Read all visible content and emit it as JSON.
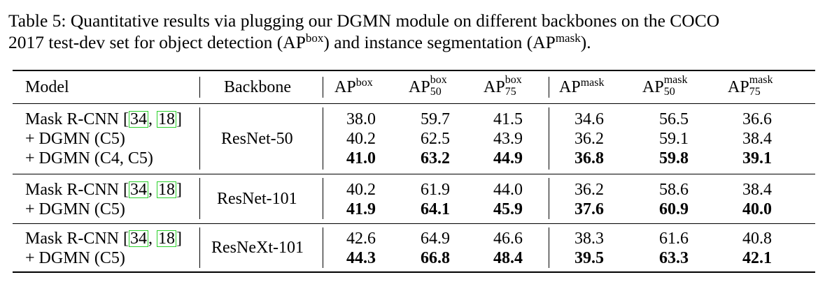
{
  "caption": {
    "line1": "Table 5: Quantitative results via plugging our DGMN module on different backbones on the COCO",
    "line2_start": "2017 test-dev set for object detection (AP",
    "line2_sup1": "box",
    "line2_mid": ") and instance segmentation (AP",
    "line2_sup2": "mask",
    "line2_end": ")."
  },
  "table": {
    "headers": {
      "model": "Model",
      "backbone": "Backbone",
      "metrics": [
        {
          "base": "AP",
          "sup": "box",
          "sub": ""
        },
        {
          "base": "AP",
          "sup": "box",
          "sub": "50"
        },
        {
          "base": "AP",
          "sup": "box",
          "sub": "75"
        },
        {
          "base": "AP",
          "sup": "mask",
          "sub": ""
        },
        {
          "base": "AP",
          "sup": "mask",
          "sub": "50"
        },
        {
          "base": "AP",
          "sup": "mask",
          "sub": "75"
        }
      ]
    },
    "groups": [
      {
        "backbone": "ResNet-50",
        "rows": [
          {
            "prefix": "Mask R-CNN [",
            "ref1": "34",
            "sep": ", ",
            "ref2": "18",
            "suffix": "]",
            "values": [
              "38.0",
              "59.7",
              "41.5",
              "34.6",
              "56.5",
              "36.6"
            ],
            "bold": false
          },
          {
            "model": "+ DGMN (C5)",
            "values": [
              "40.2",
              "62.5",
              "43.9",
              "36.2",
              "59.1",
              "38.4"
            ],
            "bold": false
          },
          {
            "model": "+ DGMN (C4, C5)",
            "values": [
              "41.0",
              "63.2",
              "44.9",
              "36.8",
              "59.8",
              "39.1"
            ],
            "bold": true
          }
        ]
      },
      {
        "backbone": "ResNet-101",
        "rows": [
          {
            "prefix": "Mask R-CNN [",
            "ref1": "34",
            "sep": ", ",
            "ref2": "18",
            "suffix": "]",
            "values": [
              "40.2",
              "61.9",
              "44.0",
              "36.2",
              "58.6",
              "38.4"
            ],
            "bold": false
          },
          {
            "model": "+ DGMN (C5)",
            "values": [
              "41.9",
              "64.1",
              "45.9",
              "37.6",
              "60.9",
              "40.0"
            ],
            "bold": true
          }
        ]
      },
      {
        "backbone": "ResNeXt-101",
        "rows": [
          {
            "prefix": "Mask R-CNN [",
            "ref1": "34",
            "sep": ", ",
            "ref2": "18",
            "suffix": "]",
            "values": [
              "42.6",
              "64.9",
              "46.6",
              "38.3",
              "61.6",
              "40.8"
            ],
            "bold": false
          },
          {
            "model": "+ DGMN (C5)",
            "values": [
              "44.3",
              "66.8",
              "48.4",
              "39.5",
              "63.3",
              "42.1"
            ],
            "bold": true
          }
        ]
      }
    ]
  }
}
